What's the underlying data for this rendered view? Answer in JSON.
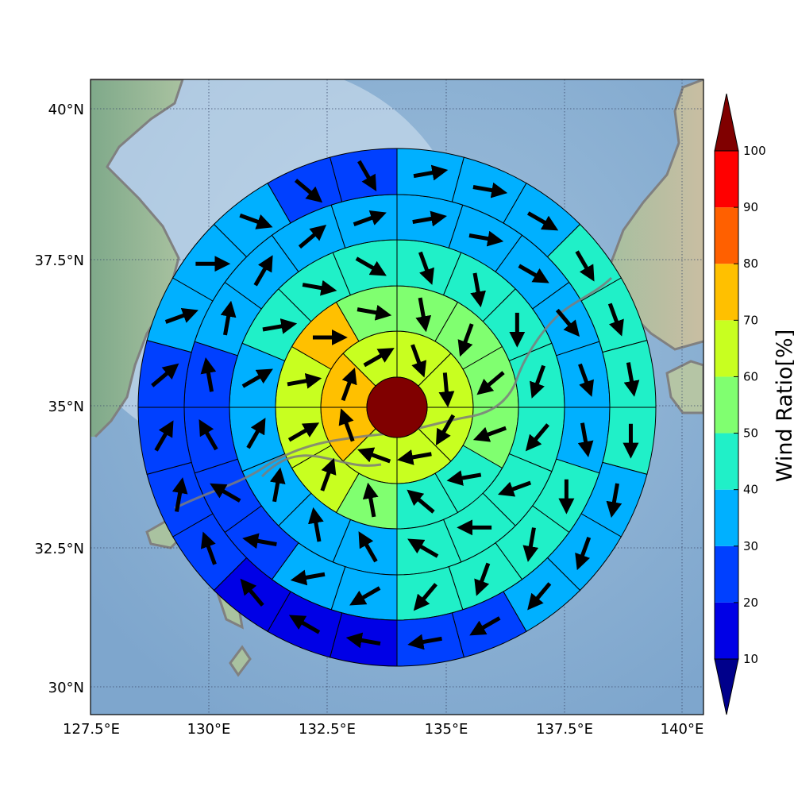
{
  "chart_data": {
    "type": "heatmap",
    "title": "",
    "projection": "polar wind-rose grid over map",
    "x_ticks": [
      "127.5°E",
      "130°E",
      "132.5°E",
      "135°E",
      "137.5°E",
      "140°E"
    ],
    "y_ticks": [
      "40°N",
      "37.5°N",
      "35°N",
      "32.5°N",
      "30°N"
    ],
    "x_range": [
      127.5,
      140.5
    ],
    "y_range": [
      29.5,
      40.5
    ],
    "gridlines": "dotted",
    "center_value": 100,
    "sectors_per_ring": [
      8,
      12,
      16,
      20,
      24
    ],
    "rings": [
      {
        "ratio": [
          60,
          60,
          60,
          60,
          60,
          70,
          70,
          60
        ],
        "wind_deg": [
          160,
          175,
          210,
          260,
          290,
          340,
          20,
          60
        ]
      },
      {
        "ratio": [
          50,
          50,
          50,
          50,
          40,
          40,
          50,
          60,
          60,
          60,
          70,
          50
        ],
        "wind_deg": [
          170,
          200,
          230,
          250,
          260,
          310,
          350,
          20,
          60,
          80,
          90,
          100
        ]
      },
      {
        "ratio": [
          40,
          40,
          40,
          40,
          40,
          40,
          40,
          40,
          30,
          30,
          30,
          30,
          30,
          40,
          40,
          40
        ],
        "wind_deg": [
          160,
          170,
          180,
          200,
          220,
          250,
          270,
          300,
          330,
          350,
          10,
          30,
          60,
          80,
          100,
          120
        ]
      },
      {
        "ratio": [
          30,
          30,
          30,
          30,
          30,
          30,
          40,
          40,
          40,
          40,
          30,
          30,
          20,
          20,
          20,
          20,
          30,
          30,
          30,
          30
        ],
        "wind_deg": [
          80,
          100,
          120,
          140,
          160,
          170,
          180,
          190,
          200,
          220,
          240,
          260,
          280,
          300,
          330,
          350,
          10,
          30,
          50,
          70
        ]
      },
      {
        "ratio": [
          30,
          30,
          30,
          40,
          40,
          40,
          40,
          30,
          30,
          30,
          20,
          20,
          10,
          10,
          10,
          20,
          20,
          20,
          20,
          30,
          30,
          30,
          20,
          20
        ],
        "wind_deg": [
          80,
          100,
          120,
          150,
          160,
          170,
          180,
          190,
          200,
          220,
          240,
          260,
          280,
          300,
          320,
          340,
          10,
          30,
          50,
          70,
          90,
          110,
          130,
          150
        ]
      }
    ],
    "colorbar": {
      "label": "Wind Ratio[%]",
      "ticks": [
        "10",
        "20",
        "30",
        "40",
        "50",
        "60",
        "70",
        "80",
        "90",
        "100"
      ],
      "colors": [
        "#00008b",
        "#0000e6",
        "#0040ff",
        "#00b0ff",
        "#20f0c8",
        "#80ff70",
        "#c8ff20",
        "#ffc000",
        "#ff6000",
        "#ff0000",
        "#800000"
      ]
    }
  }
}
